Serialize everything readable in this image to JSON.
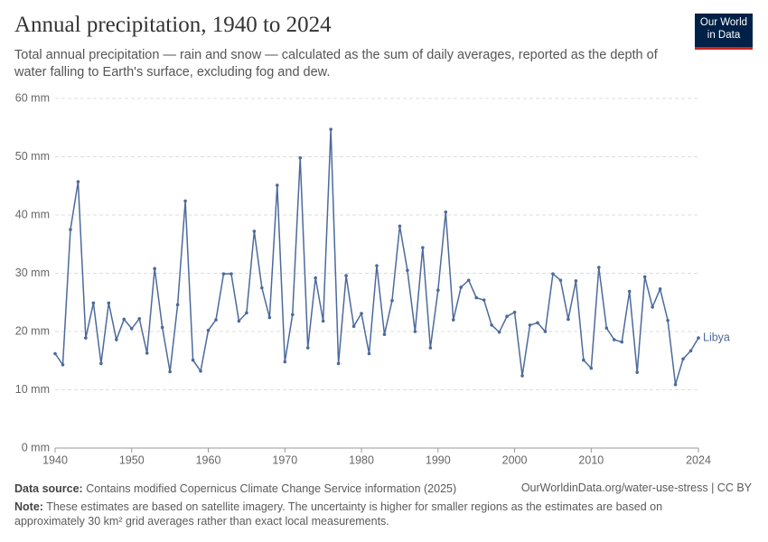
{
  "chart_data": {
    "type": "line",
    "title": "Annual precipitation, 1940 to 2024",
    "subtitle": "Total annual precipitation — rain and snow — calculated as the sum of daily averages, reported as the depth of water falling to Earth's surface, excluding fog and dew.",
    "logo": [
      "Our World",
      "in Data"
    ],
    "source_label": "Data source:",
    "source": "Contains modified Copernicus Climate Change Service information (2025)",
    "url": "OurWorldinData.org/water-use-stress | CC BY",
    "note_label": "Note:",
    "note": "These estimates are based on satellite imagery. The uncertainty is higher for smaller regions as the estimates are based on approximately 30 km² grid averages rather than exact local measurements.",
    "x": [
      1940,
      1941,
      1942,
      1943,
      1944,
      1945,
      1946,
      1947,
      1948,
      1949,
      1950,
      1951,
      1952,
      1953,
      1954,
      1955,
      1956,
      1957,
      1958,
      1959,
      1960,
      1961,
      1962,
      1963,
      1964,
      1965,
      1966,
      1967,
      1968,
      1969,
      1970,
      1971,
      1972,
      1973,
      1974,
      1975,
      1976,
      1977,
      1978,
      1979,
      1980,
      1981,
      1982,
      1983,
      1984,
      1985,
      1986,
      1987,
      1988,
      1989,
      1990,
      1991,
      1992,
      1993,
      1994,
      1995,
      1996,
      1997,
      1998,
      1999,
      2000,
      2001,
      2002,
      2003,
      2004,
      2005,
      2006,
      2007,
      2008,
      2009,
      2010,
      2011,
      2012,
      2013,
      2014,
      2015,
      2016,
      2017,
      2018,
      2019,
      2020,
      2021,
      2022,
      2023,
      2024
    ],
    "series": [
      {
        "name": "Libya",
        "color": "#4c6a9c",
        "values": [
          16.2,
          14.3,
          37.5,
          45.7,
          18.9,
          24.9,
          14.5,
          24.9,
          18.6,
          22.1,
          20.5,
          22.2,
          16.3,
          30.8,
          20.7,
          13.1,
          24.6,
          42.4,
          15.1,
          13.2,
          20.2,
          22.0,
          29.9,
          29.9,
          21.8,
          23.2,
          37.2,
          27.5,
          22.4,
          45.1,
          14.8,
          22.9,
          49.8,
          17.2,
          29.2,
          21.8,
          54.7,
          14.5,
          29.6,
          20.9,
          23.1,
          16.2,
          31.3,
          19.5,
          25.3,
          38.1,
          30.5,
          20.0,
          34.4,
          17.2,
          27.1,
          40.5,
          22.0,
          27.6,
          28.8,
          25.8,
          25.4,
          21.1,
          19.9,
          22.6,
          23.3,
          12.4,
          21.1,
          21.5,
          20.0,
          29.9,
          28.8,
          22.1,
          28.7,
          15.1,
          13.7,
          31.0,
          20.6,
          18.6,
          18.2,
          26.9,
          13.0,
          29.4,
          24.2,
          27.3,
          21.9,
          10.9,
          15.3,
          16.7,
          18.9
        ]
      }
    ],
    "xlim": [
      1940,
      2024
    ],
    "xticks": [
      1940,
      1950,
      1960,
      1970,
      1980,
      1990,
      2000,
      2010,
      2024
    ],
    "ylim": [
      0,
      60
    ],
    "yticks": [
      {
        "value": 0,
        "label": "0 mm"
      },
      {
        "value": 10,
        "label": "10 mm"
      },
      {
        "value": 20,
        "label": "20 mm"
      },
      {
        "value": 30,
        "label": "30 mm"
      },
      {
        "value": 40,
        "label": "40 mm"
      },
      {
        "value": 50,
        "label": "50 mm"
      },
      {
        "value": 60,
        "label": "60 mm"
      }
    ],
    "grid": true
  }
}
